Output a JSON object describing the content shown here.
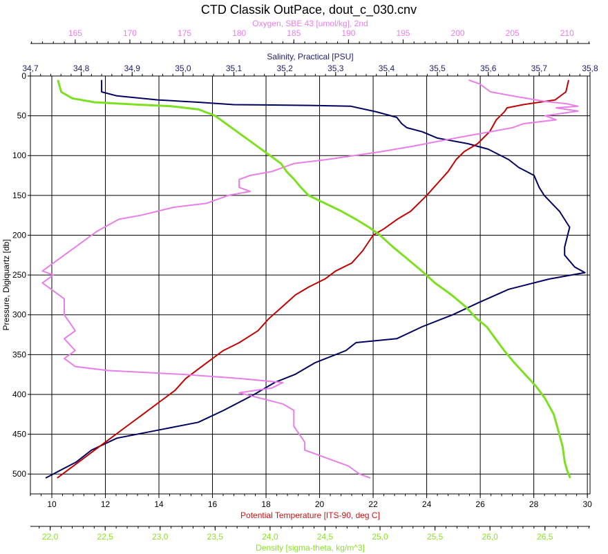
{
  "chart_data": {
    "type": "line",
    "title": "CTD Classik OutPace, dout_c_030.cnv",
    "grid": true,
    "y_axis": {
      "label": "Pressure, Digiquartz [db]",
      "range": [
        0,
        525
      ],
      "inverted": true,
      "ticks": [
        "0",
        "50",
        "100",
        "150",
        "200",
        "250",
        "300",
        "350",
        "400",
        "450",
        "500"
      ]
    },
    "x_axes": [
      {
        "id": "oxygen",
        "label": "Oxygen, SBE 43 [umol/kg], 2nd",
        "position": "top",
        "color": "#e87ee8",
        "range": [
          160.9,
          212.1
        ],
        "ticks": [
          "165",
          "170",
          "175",
          "180",
          "185",
          "190",
          "195",
          "200",
          "205",
          "210"
        ]
      },
      {
        "id": "salinity",
        "label": "Salinity, Practical [PSU]",
        "position": "top",
        "color": "#1a1a70",
        "range": [
          34.7,
          35.8
        ],
        "ticks": [
          "34,7",
          "34,8",
          "34,9",
          "35,0",
          "35,1",
          "35,2",
          "35,3",
          "35,4",
          "35,5",
          "35,6",
          "35,7",
          "35,8"
        ]
      },
      {
        "id": "temperature",
        "label": "Potential Temperature [ITS-90, deg C]",
        "position": "bottom",
        "color": "#d01010",
        "range": [
          9.2,
          30.1
        ],
        "ticks": [
          "10",
          "12",
          "14",
          "16",
          "18",
          "20",
          "22",
          "24",
          "26",
          "28",
          "30"
        ]
      },
      {
        "id": "density",
        "label": "Density [sigma-theta, kg/m^3]",
        "position": "bottom",
        "color": "#88e026",
        "range": [
          21.82,
          26.91
        ],
        "ticks": [
          "22,0",
          "22,5",
          "23,0",
          "23,5",
          "24,0",
          "24,5",
          "25,0",
          "25,5",
          "26,0",
          "26,5"
        ]
      }
    ],
    "series": [
      {
        "axis": "salinity",
        "color": "#000060",
        "points": [
          [
            34.84,
            5
          ],
          [
            34.84,
            20
          ],
          [
            34.87,
            25
          ],
          [
            34.95,
            30
          ],
          [
            35.03,
            33
          ],
          [
            35.1,
            36
          ],
          [
            35.25,
            37
          ],
          [
            35.33,
            38
          ],
          [
            35.38,
            45
          ],
          [
            35.42,
            52
          ],
          [
            35.43,
            60
          ],
          [
            35.44,
            65
          ],
          [
            35.47,
            70
          ],
          [
            35.5,
            78
          ],
          [
            35.56,
            85
          ],
          [
            35.6,
            92
          ],
          [
            35.64,
            105
          ],
          [
            35.66,
            115
          ],
          [
            35.69,
            125
          ],
          [
            35.7,
            140
          ],
          [
            35.71,
            150
          ],
          [
            35.74,
            170
          ],
          [
            35.76,
            190
          ],
          [
            35.75,
            215
          ],
          [
            35.75,
            225
          ],
          [
            35.77,
            240
          ],
          [
            35.79,
            247
          ],
          [
            35.72,
            255
          ],
          [
            35.64,
            268
          ],
          [
            35.58,
            285
          ],
          [
            35.53,
            300
          ],
          [
            35.47,
            315
          ],
          [
            35.42,
            330
          ],
          [
            35.34,
            335
          ],
          [
            35.32,
            345
          ],
          [
            35.26,
            360
          ],
          [
            35.22,
            375
          ],
          [
            35.18,
            385
          ],
          [
            35.14,
            400
          ],
          [
            35.08,
            420
          ],
          [
            35.03,
            435
          ],
          [
            34.95,
            445
          ],
          [
            34.87,
            455
          ],
          [
            34.82,
            470
          ],
          [
            34.79,
            485
          ],
          [
            34.76,
            495
          ],
          [
            34.73,
            505
          ]
        ]
      },
      {
        "axis": "temperature",
        "color": "#c00000",
        "points": [
          [
            29.3,
            5
          ],
          [
            29.2,
            20
          ],
          [
            28.8,
            30
          ],
          [
            27.6,
            36
          ],
          [
            27.0,
            40
          ],
          [
            26.9,
            45
          ],
          [
            26.6,
            55
          ],
          [
            26.35,
            70
          ],
          [
            25.9,
            85
          ],
          [
            25.4,
            95
          ],
          [
            25.1,
            105
          ],
          [
            24.8,
            120
          ],
          [
            24.4,
            135
          ],
          [
            24.0,
            150
          ],
          [
            23.7,
            160
          ],
          [
            23.4,
            170
          ],
          [
            22.9,
            180
          ],
          [
            22.4,
            192
          ],
          [
            22.0,
            200
          ],
          [
            21.8,
            210
          ],
          [
            21.6,
            220
          ],
          [
            21.2,
            235
          ],
          [
            20.6,
            245
          ],
          [
            20.2,
            255
          ],
          [
            19.6,
            265
          ],
          [
            19.1,
            275
          ],
          [
            18.6,
            290
          ],
          [
            18.1,
            305
          ],
          [
            17.7,
            320
          ],
          [
            17.0,
            335
          ],
          [
            16.4,
            345
          ],
          [
            16.0,
            355
          ],
          [
            15.6,
            365
          ],
          [
            15.0,
            380
          ],
          [
            14.6,
            395
          ],
          [
            14.0,
            410
          ],
          [
            13.4,
            425
          ],
          [
            12.8,
            440
          ],
          [
            12.2,
            455
          ],
          [
            11.6,
            470
          ],
          [
            11.0,
            485
          ],
          [
            10.6,
            495
          ],
          [
            10.2,
            505
          ]
        ]
      },
      {
        "axis": "oxygen",
        "color": "#e87ee8",
        "points": [
          [
            201,
            5
          ],
          [
            202,
            10
          ],
          [
            203,
            20
          ],
          [
            205,
            25
          ],
          [
            208,
            32
          ],
          [
            210,
            35
          ],
          [
            211,
            38
          ],
          [
            209,
            40
          ],
          [
            211,
            44
          ],
          [
            208,
            50
          ],
          [
            209,
            55
          ],
          [
            206,
            60
          ],
          [
            205,
            65
          ],
          [
            203,
            70
          ],
          [
            201,
            75
          ],
          [
            199,
            80
          ],
          [
            196,
            88
          ],
          [
            193,
            95
          ],
          [
            188,
            105
          ],
          [
            185,
            110
          ],
          [
            184,
            115
          ],
          [
            183,
            120
          ],
          [
            181,
            125
          ],
          [
            180,
            130
          ],
          [
            180,
            140
          ],
          [
            181,
            145
          ],
          [
            179,
            150
          ],
          [
            177,
            160
          ],
          [
            174,
            165
          ],
          [
            171,
            175
          ],
          [
            169,
            180
          ],
          [
            167,
            195
          ],
          [
            165,
            215
          ],
          [
            164,
            225
          ],
          [
            163,
            235
          ],
          [
            162,
            245
          ],
          [
            163,
            250
          ],
          [
            162,
            260
          ],
          [
            163,
            270
          ],
          [
            164,
            280
          ],
          [
            164,
            300
          ],
          [
            165,
            320
          ],
          [
            164,
            330
          ],
          [
            165,
            345
          ],
          [
            164,
            355
          ],
          [
            165,
            365
          ],
          [
            168,
            370
          ],
          [
            175,
            375
          ],
          [
            180,
            380
          ],
          [
            184,
            385
          ],
          [
            183,
            392
          ],
          [
            180,
            398
          ],
          [
            182,
            405
          ],
          [
            184,
            412
          ],
          [
            185,
            420
          ],
          [
            185,
            440
          ],
          [
            186,
            460
          ],
          [
            186,
            470
          ],
          [
            188,
            480
          ],
          [
            190,
            490
          ],
          [
            191,
            500
          ],
          [
            192,
            505
          ]
        ]
      },
      {
        "axis": "density",
        "color": "#7ce020",
        "points": [
          [
            22.07,
            5
          ],
          [
            22.1,
            20
          ],
          [
            22.2,
            28
          ],
          [
            22.4,
            33
          ],
          [
            22.8,
            36
          ],
          [
            23.1,
            38
          ],
          [
            23.35,
            42
          ],
          [
            23.5,
            50
          ],
          [
            23.6,
            60
          ],
          [
            23.7,
            70
          ],
          [
            23.8,
            80
          ],
          [
            23.9,
            90
          ],
          [
            24.0,
            100
          ],
          [
            24.1,
            110
          ],
          [
            24.15,
            120
          ],
          [
            24.22,
            130
          ],
          [
            24.28,
            140
          ],
          [
            24.35,
            150
          ],
          [
            24.5,
            160
          ],
          [
            24.65,
            170
          ],
          [
            24.78,
            180
          ],
          [
            24.9,
            190
          ],
          [
            25.0,
            200
          ],
          [
            25.12,
            215
          ],
          [
            25.25,
            230
          ],
          [
            25.38,
            245
          ],
          [
            25.5,
            260
          ],
          [
            25.65,
            275
          ],
          [
            25.78,
            290
          ],
          [
            25.88,
            305
          ],
          [
            25.97,
            315
          ],
          [
            26.05,
            330
          ],
          [
            26.13,
            345
          ],
          [
            26.22,
            360
          ],
          [
            26.32,
            375
          ],
          [
            26.42,
            390
          ],
          [
            26.5,
            405
          ],
          [
            26.58,
            425
          ],
          [
            26.62,
            445
          ],
          [
            26.66,
            465
          ],
          [
            26.68,
            485
          ],
          [
            26.7,
            495
          ],
          [
            26.73,
            505
          ]
        ]
      }
    ]
  }
}
